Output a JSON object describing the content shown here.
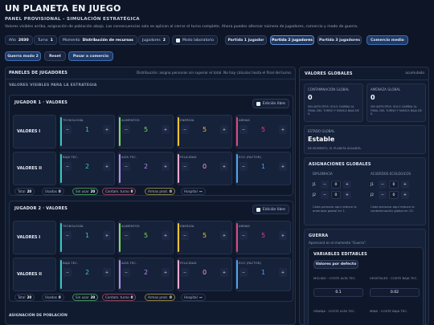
{
  "header": {
    "title": "UN PLANETA EN JUEGO",
    "subtitle": "PANEL PROVISIONAL - SIMULACIÓN ESTRATÉGICA",
    "description": "Valores visibles arriba, asignación de población abajo. Las consecuencias solo se aplican al cerrar el turno completo. Ahora puedes alternar número de jugadores, comercio y modo de guerra."
  },
  "toolbar": {
    "year_label": "Año",
    "year_value": "2030",
    "turn_label": "Turno",
    "turn_value": "1",
    "moment_label": "Momento",
    "moment_value": "Distribución de recursos",
    "players_label": "Jugadores",
    "players_value": "2",
    "lab_mode_label": "Modo laboratorio",
    "game_1p": "Partida 1 jugador",
    "game_2p": "Partida 2 jugadores",
    "game_3p": "Partida 3 jugadores",
    "commerce_medium": "Comercio medio",
    "war_mode": "Guerra modo 2",
    "reset": "Reset",
    "go_commerce": "Pasar a comercio"
  },
  "players_panel": {
    "title": "PANELES DE JUGADORES",
    "hint": "Distribución: asigna personas sin superar el total. No hay cálculos hasta el final del turno.",
    "section": "VALORES VISIBLES PARA LA ESTRATEGIA",
    "free_edit": "Edición libre",
    "players": [
      {
        "title": "JUGADOR 1 · VALORES",
        "row1_label": "VALORES I",
        "row2_label": "VALORES II",
        "row1": [
          {
            "label": "TECNOLOGÍA",
            "value": "1",
            "color": "#37c6c0"
          },
          {
            "label": "ALIMENTOS",
            "value": "5",
            "color": "#7bdc5a"
          },
          {
            "label": "ENERGÍA",
            "value": "5",
            "color": "#f1c232"
          },
          {
            "label": "ARMAS",
            "value": "5",
            "color": "#e0457b"
          }
        ],
        "row2": [
          {
            "label": "BAJA TEC.",
            "value": "2",
            "color": "#37c6c0"
          },
          {
            "label": "ALTA TEC.",
            "value": "2",
            "color": "#b38be6"
          },
          {
            "label": "FELICIDAD",
            "value": "0",
            "color": "#f0a8d0"
          },
          {
            "label": "ECO (FACTOR)",
            "value": "1",
            "color": "#4aa3f0"
          }
        ],
        "stats": [
          {
            "label": "Total",
            "value": "20"
          },
          {
            "label": "Usadas",
            "value": "0"
          },
          {
            "label": "Sin usar",
            "value": "20"
          },
          {
            "label": "Contam. turno",
            "value": "0"
          },
          {
            "label": "Armas prod.",
            "value": "0"
          },
          {
            "label": "Hospital",
            "value": "—"
          }
        ]
      },
      {
        "title": "JUGADOR 2 · VALORES",
        "row1_label": "VALORES I",
        "row2_label": "VALORES II",
        "row1": [
          {
            "label": "TECNOLOGÍA",
            "value": "1",
            "color": "#37c6c0"
          },
          {
            "label": "ALIMENTOS",
            "value": "5",
            "color": "#7bdc5a"
          },
          {
            "label": "ENERGÍA",
            "value": "5",
            "color": "#f1c232"
          },
          {
            "label": "ARMAS",
            "value": "5",
            "color": "#e0457b"
          }
        ],
        "row2": [
          {
            "label": "BAJA TEC.",
            "value": "2",
            "color": "#37c6c0"
          },
          {
            "label": "ALTA TEC.",
            "value": "2",
            "color": "#b38be6"
          },
          {
            "label": "FELICIDAD",
            "value": "0",
            "color": "#f0a8d0"
          },
          {
            "label": "ECO (FACTOR)",
            "value": "1",
            "color": "#4aa3f0"
          }
        ],
        "stats": [
          {
            "label": "Total",
            "value": "20"
          },
          {
            "label": "Usadas",
            "value": "0"
          },
          {
            "label": "Sin usar",
            "value": "20"
          },
          {
            "label": "Contam. turno",
            "value": "0"
          },
          {
            "label": "Armas prod.",
            "value": "0"
          },
          {
            "label": "Hospital",
            "value": "—"
          }
        ]
      }
    ],
    "population": "ASIGNACIÓN DE POBLACIÓN"
  },
  "global_panel": {
    "title": "VALORES GLOBALES",
    "accumulated": "acumulado",
    "contamination_label": "CONTAMINACIÓN GLOBAL",
    "contamination_value": "0",
    "contamination_desc": "SIN ANTICIPOS: SOLO CAMBIA AL FINAL DEL TURNO Y NUNCA BAJA DE 0.",
    "threat_label": "AMENAZA GLOBAL",
    "threat_value": "0",
    "threat_desc": "SIN ANTICIPOS: SOLO CAMBIA AL FINAL DEL TURNO Y NUNCA BAJA DE 0.",
    "state_label": "ESTADO GLOBAL",
    "state_value": "Estable",
    "state_desc": "DE MOMENTO, EL PLANETA AGUANTA.",
    "assign_title": "ASIGNACIONES GLOBALES",
    "diplomacy_label": "DIPLOMACIA",
    "eco_label": "ACUERDOS ECOLÓGICOS",
    "j1": "J1",
    "j2": "J2",
    "dip_j1": "0",
    "dip_j2": "0",
    "eco_j1": "0",
    "eco_j2": "0",
    "dip_note": "Cada persona aquí reduce la amenaza global en 1.",
    "eco_note": "Cada persona aquí reduce la contaminación global en 15.",
    "war_title": "GUERRA",
    "war_note": "Aparecerá en el momento \"Guerra\".",
    "editable_title": "VARIABLES EDITABLES",
    "defaults": "Valores por defecto",
    "mill_label": "MOLINO · COSTE ALTA TEC.",
    "mill_value": "0.1",
    "veg_label": "VEGETALES · COSTE BAJA TEC.",
    "veg_value": "0.02",
    "farm_label": "GRANJA · COSTE ALTA TEC.",
    "mine_label": "MINA · COSTE BAJA TEC."
  }
}
